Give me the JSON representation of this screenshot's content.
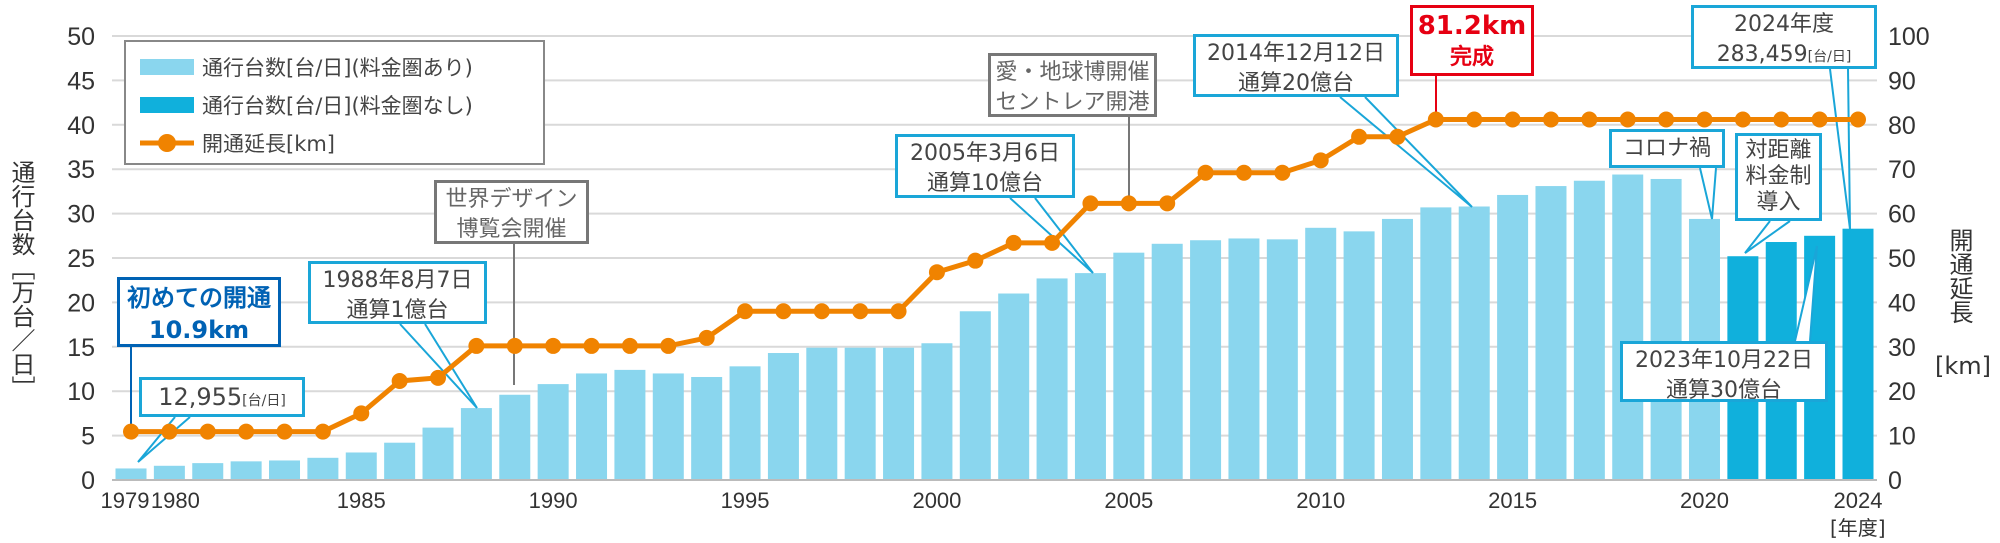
{
  "chart_data": {
    "type": "bar+line",
    "categories": [
      "1979",
      "1980",
      "1981",
      "1982",
      "1983",
      "1984",
      "1985",
      "1986",
      "1987",
      "1988",
      "1989",
      "1990",
      "1991",
      "1992",
      "1993",
      "1994",
      "1995",
      "1996",
      "1997",
      "1998",
      "1999",
      "2000",
      "2001",
      "2002",
      "2003",
      "2004",
      "2005",
      "2006",
      "2007",
      "2008",
      "2009",
      "2010",
      "2011",
      "2012",
      "2013",
      "2014",
      "2015",
      "2016",
      "2017",
      "2018",
      "2019",
      "2020",
      "2021",
      "2022",
      "2023",
      "2024"
    ],
    "x_tick_labels": [
      "1979",
      "1980",
      "1985",
      "1990",
      "1995",
      "2000",
      "2005",
      "2010",
      "2015",
      "2020",
      "2024"
    ],
    "xlabel": "[年度]",
    "ylabel_left": "通行台数［万台／日］",
    "ylabel_right": "開通延長",
    "ylabel_right_unit": "[km]",
    "ylim_left": [
      0,
      50
    ],
    "yticks_left": [
      "0",
      "5",
      "10",
      "15",
      "20",
      "25",
      "30",
      "35",
      "40",
      "45",
      "50"
    ],
    "ylim_right": [
      0,
      100
    ],
    "yticks_right": [
      "0",
      "10",
      "20",
      "30",
      "40",
      "50",
      "60",
      "70",
      "80",
      "90",
      "100"
    ],
    "grid": true,
    "legend_placement": "top-left",
    "series": [
      {
        "name": "通行台数[台/日](料金圏あり)",
        "type": "bar",
        "axis": "left",
        "color": "#8ad6ee",
        "values": [
          1.3,
          1.6,
          1.9,
          2.1,
          2.2,
          2.5,
          3.1,
          4.2,
          5.9,
          8.1,
          9.6,
          10.8,
          12.0,
          12.4,
          12.0,
          11.6,
          12.8,
          14.3,
          14.9,
          14.9,
          14.9,
          15.4,
          19.0,
          21.0,
          22.7,
          23.3,
          25.6,
          26.6,
          27.0,
          27.2,
          27.1,
          28.4,
          28.0,
          29.4,
          30.7,
          30.8,
          32.1,
          33.1,
          33.7,
          34.4,
          33.9,
          29.4,
          null,
          null,
          null,
          null
        ]
      },
      {
        "name": "通行台数[台/日](料金圏なし)",
        "type": "bar",
        "axis": "left",
        "color": "#10b0dc",
        "values": [
          null,
          null,
          null,
          null,
          null,
          null,
          null,
          null,
          null,
          null,
          null,
          null,
          null,
          null,
          null,
          null,
          null,
          null,
          null,
          null,
          null,
          null,
          null,
          null,
          null,
          null,
          null,
          null,
          null,
          null,
          null,
          null,
          null,
          null,
          null,
          null,
          null,
          null,
          null,
          null,
          null,
          null,
          25.2,
          26.8,
          27.5,
          28.3
        ]
      },
      {
        "name": "開通延長[km]",
        "type": "line",
        "axis": "right",
        "color": "#f08300",
        "values": [
          10.9,
          10.9,
          10.9,
          10.9,
          10.9,
          10.9,
          15,
          22.3,
          23,
          30.2,
          30.2,
          30.2,
          30.2,
          30.2,
          30.2,
          32,
          38,
          38,
          38,
          38,
          38,
          46.8,
          49.4,
          53.4,
          53.4,
          62.3,
          62.3,
          62.3,
          69.2,
          69.2,
          69.2,
          72,
          77.3,
          77.3,
          81.2,
          81.2,
          81.2,
          81.2,
          81.2,
          81.2,
          81.2,
          81.2,
          81.2,
          81.2,
          81.2,
          81.2
        ]
      }
    ],
    "annotations": {
      "first_open": [
        "初めての開通",
        "10.9km"
      ],
      "first_count": {
        "value": "12,955",
        "unit": "[台/日]"
      },
      "billion1": [
        "1988年8月7日",
        "通算1億台"
      ],
      "design_expo": [
        "世界デザイン",
        "博覧会開催"
      ],
      "billion10": [
        "2005年3月6日",
        "通算10億台"
      ],
      "aichi_expo": [
        "愛・地球博開催",
        "セントレア開港"
      ],
      "billion20": [
        "2014年12月12日",
        "通算20億台"
      ],
      "complete": [
        "81.2km",
        "完成"
      ],
      "fy2024": {
        "line1": "2024年度",
        "value": "283,459",
        "unit": "[台/日]"
      },
      "corona": [
        "コロナ禍"
      ],
      "distance_toll": [
        "対距離",
        "料金制",
        "導入"
      ],
      "billion30": [
        "2023年10月22日",
        "通算30億台"
      ]
    }
  }
}
